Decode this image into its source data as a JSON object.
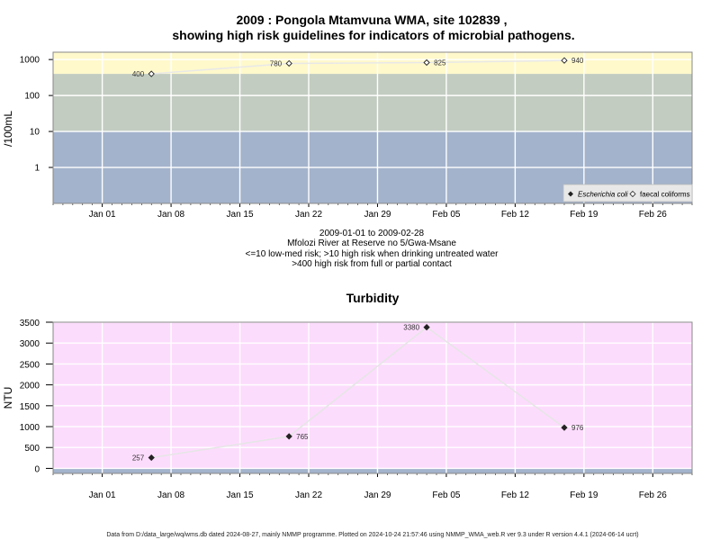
{
  "chart_data": [
    {
      "type": "scatter",
      "title_line1": "2009 : Pongola Mtamvuna WMA, site 102839 ,",
      "title_line2": "showing high risk guidelines for indicators of microbial pathogens.",
      "ylabel": "/100mL",
      "yscale": "log",
      "ylim": [
        0.1,
        1600
      ],
      "yticks": [
        {
          "v": 1,
          "label": "1"
        },
        {
          "v": 10,
          "label": "10"
        },
        {
          "v": 100,
          "label": "100"
        },
        {
          "v": 1000,
          "label": "1000"
        }
      ],
      "bands": [
        {
          "from": 0.1,
          "to": 10,
          "color": "#a3b3cc"
        },
        {
          "from": 10,
          "to": 400,
          "color": "#c2ccc0"
        },
        {
          "from": 400,
          "to": 1600,
          "color": "#fff9cc"
        }
      ],
      "xlim": [
        "2008-12-27",
        "2009-03-02"
      ],
      "xticks": [
        {
          "date": "2009-01-01",
          "label": "Jan 01"
        },
        {
          "date": "2009-01-08",
          "label": "Jan 08"
        },
        {
          "date": "2009-01-15",
          "label": "Jan 15"
        },
        {
          "date": "2009-01-22",
          "label": "Jan 22"
        },
        {
          "date": "2009-01-29",
          "label": "Jan 29"
        },
        {
          "date": "2009-02-05",
          "label": "Feb 05"
        },
        {
          "date": "2009-02-12",
          "label": "Feb 12"
        },
        {
          "date": "2009-02-19",
          "label": "Feb 19"
        },
        {
          "date": "2009-02-26",
          "label": "Feb 26"
        }
      ],
      "series": [
        {
          "name": "faecal coliforms",
          "marker": "open-diamond",
          "points": [
            {
              "date": "2009-01-06",
              "value": 400,
              "label": "400",
              "label_side": "left"
            },
            {
              "date": "2009-01-20",
              "value": 780,
              "label": "780",
              "label_side": "left"
            },
            {
              "date": "2009-02-03",
              "value": 825,
              "label": "825",
              "label_side": "right"
            },
            {
              "date": "2009-02-17",
              "value": 940,
              "label": "940",
              "label_side": "right"
            }
          ]
        }
      ],
      "legend": {
        "position": "bottom-right",
        "items": [
          {
            "label": "Escherichia coli",
            "marker": "filled-diamond",
            "italic": true
          },
          {
            "label": "faecal coliforms",
            "marker": "open-diamond",
            "italic": false
          }
        ]
      },
      "notes": [
        "2009-01-01 to 2009-02-28",
        "Mfolozi River at Reserve no 5/Gwa-Msane",
        "<=10 low-med risk; >10 high risk when drinking untreated water",
        ">400 high risk from full or partial contact"
      ]
    },
    {
      "type": "line",
      "title": "Turbidity",
      "ylabel": "NTU",
      "ylim": [
        -120,
        3500
      ],
      "yticks": [
        0,
        500,
        1000,
        1500,
        2000,
        2500,
        3000,
        3500
      ],
      "background": "#fcdcfc",
      "baseline_band": {
        "from": -120,
        "to": 0,
        "color": "#a3b3cc"
      },
      "xlim": [
        "2008-12-27",
        "2009-03-02"
      ],
      "xticks": [
        {
          "date": "2009-01-01",
          "label": "Jan 01"
        },
        {
          "date": "2009-01-08",
          "label": "Jan 08"
        },
        {
          "date": "2009-01-15",
          "label": "Jan 15"
        },
        {
          "date": "2009-01-22",
          "label": "Jan 22"
        },
        {
          "date": "2009-01-29",
          "label": "Jan 29"
        },
        {
          "date": "2009-02-05",
          "label": "Feb 05"
        },
        {
          "date": "2009-02-12",
          "label": "Feb 12"
        },
        {
          "date": "2009-02-19",
          "label": "Feb 19"
        },
        {
          "date": "2009-02-26",
          "label": "Feb 26"
        }
      ],
      "series": [
        {
          "marker": "filled-diamond",
          "points": [
            {
              "date": "2009-01-06",
              "value": 257,
              "label": "257",
              "label_side": "left"
            },
            {
              "date": "2009-01-20",
              "value": 765,
              "label": "765",
              "label_side": "right"
            },
            {
              "date": "2009-02-03",
              "value": 3380,
              "label": "3380",
              "label_side": "left"
            },
            {
              "date": "2009-02-17",
              "value": 976,
              "label": "976",
              "label_side": "right"
            }
          ]
        }
      ]
    }
  ],
  "footer": "Data from D:/data_large/wq/wms.db dated 2024-08-27, mainly NMMP programme. Plotted on 2024-10-24 21:57:46 using NMMP_WMA_web.R ver 9.3 under R version 4.4.1 (2024-06-14 ucrt)"
}
